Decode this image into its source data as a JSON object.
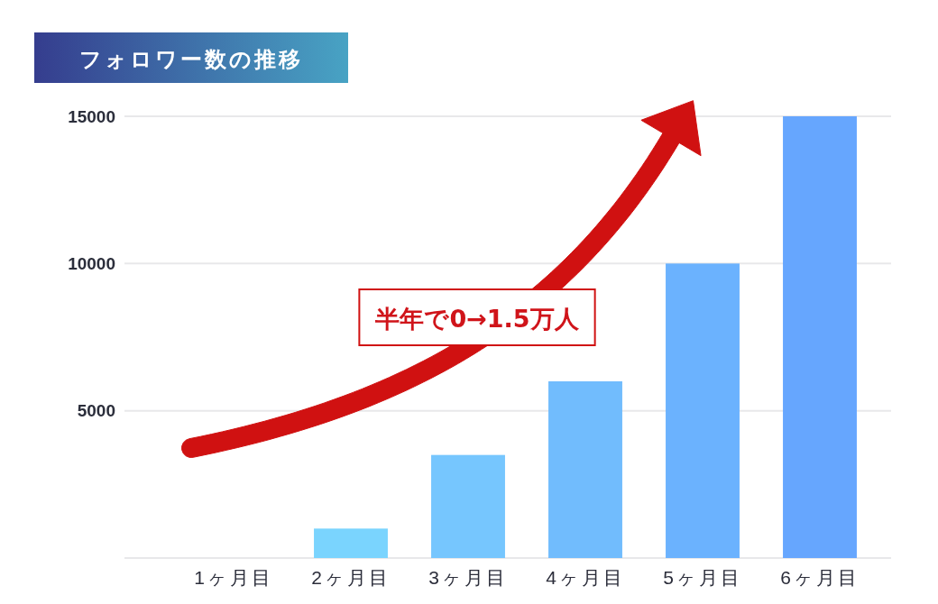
{
  "chart_data": {
    "type": "bar",
    "title": "フォロワー数の推移",
    "categories": [
      "1ヶ月目",
      "2ヶ月目",
      "3ヶ月目",
      "4ヶ月目",
      "5ヶ月目",
      "6ヶ月目"
    ],
    "values": [
      0,
      1000,
      3500,
      6000,
      10000,
      15000
    ],
    "colors": [
      "#7edcfe",
      "#7ad4fe",
      "#76c6fe",
      "#71bcfd",
      "#6bb2fe",
      "#66a6fe"
    ],
    "ylim": [
      0,
      15000
    ],
    "yticks": [
      {
        "value": 0,
        "label": null
      },
      5000,
      10000,
      15000
    ],
    "grid": "y",
    "annotations": [
      "半年で0→1.5万人"
    ]
  }
}
